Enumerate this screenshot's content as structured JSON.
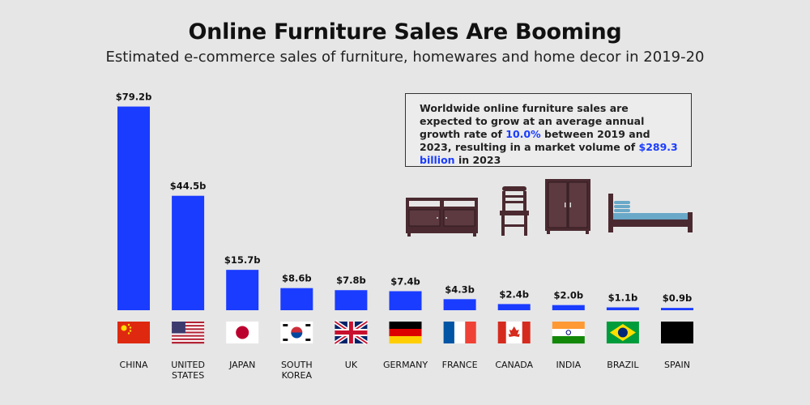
{
  "header": {
    "title": "Online Furniture Sales Are Booming",
    "subtitle": "Estimated e-commerce sales of furniture, homewares and home decor in 2019-20"
  },
  "callout": {
    "text_1": "Worldwide online furniture sales are expected to grow at an average annual growth rate of",
    "rate": "10.0%",
    "text_2": "between 2019 and 2023, resulting in a market volume of",
    "volume": "$289.3 billion",
    "text_3": "in 2023"
  },
  "colors": {
    "bar": "#1a3cff",
    "highlight": "#1a3cff",
    "furniture": "#4a2a30",
    "mattress": "#6aa8c8"
  },
  "icons": [
    "tv-stand-icon",
    "chair-icon",
    "wardrobe-icon",
    "bed-icon"
  ],
  "chart_data": {
    "type": "bar",
    "categories": [
      "CHINA",
      "UNITED STATES",
      "JAPAN",
      "SOUTH KOREA",
      "UK",
      "GERMANY",
      "FRANCE",
      "CANADA",
      "INDIA",
      "BRAZIL",
      "SPAIN"
    ],
    "category_lines": [
      [
        "CHINA"
      ],
      [
        "UNITED",
        "STATES"
      ],
      [
        "JAPAN"
      ],
      [
        "SOUTH",
        "KOREA"
      ],
      [
        "UK"
      ],
      [
        "GERMANY"
      ],
      [
        "FRANCE"
      ],
      [
        "CANADA"
      ],
      [
        "INDIA"
      ],
      [
        "BRAZIL"
      ],
      [
        "SPAIN"
      ]
    ],
    "values": [
      79.2,
      44.5,
      15.7,
      8.6,
      7.8,
      7.4,
      4.3,
      2.4,
      2.0,
      1.1,
      0.9
    ],
    "labels": [
      "$79.2b",
      "$44.5b",
      "$15.7b",
      "$8.6b",
      "$7.8b",
      "$7.4b",
      "$4.3b",
      "$2.4b",
      "$2.0b",
      "$1.1b",
      "$0.9b"
    ],
    "flags": [
      "china-flag",
      "usa-flag",
      "japan-flag",
      "south-korea-flag",
      "uk-flag",
      "germany-flag",
      "france-flag",
      "canada-flag",
      "india-flag",
      "brazil-flag",
      "spain-flag"
    ],
    "title": "Online Furniture Sales Are Booming",
    "xlabel": "",
    "ylabel": "",
    "ylim": [
      0,
      80
    ],
    "grid": false,
    "legend": "none"
  }
}
